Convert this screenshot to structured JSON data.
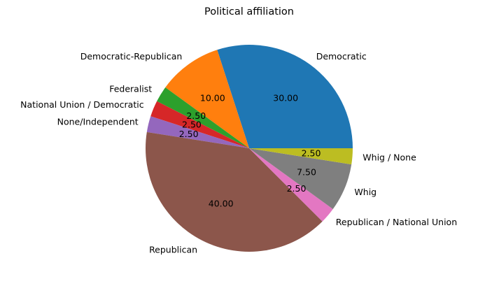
{
  "chart_data": {
    "type": "pie",
    "title": "Political affiliation",
    "labels": [
      "Democratic",
      "Democratic-Republican",
      "Federalist",
      "National Union / Democratic",
      "None/Independent",
      "Republican",
      "Republican / National Union",
      "Whig",
      "Whig / None"
    ],
    "values": [
      30.0,
      10.0,
      2.5,
      2.5,
      2.5,
      40.0,
      2.5,
      7.5,
      2.5
    ],
    "value_labels": [
      "30.00",
      "10.00",
      "2.50",
      "2.50",
      "2.50",
      "40.00",
      "2.50",
      "7.50",
      "2.50"
    ],
    "colors": [
      "#1f77b4",
      "#ff7f0e",
      "#2ca02c",
      "#d62728",
      "#9467bd",
      "#8c564b",
      "#e377c2",
      "#7f7f7f",
      "#bcbd22"
    ],
    "start_angle_deg": 0,
    "direction": "counterclockwise",
    "legend": "none"
  }
}
